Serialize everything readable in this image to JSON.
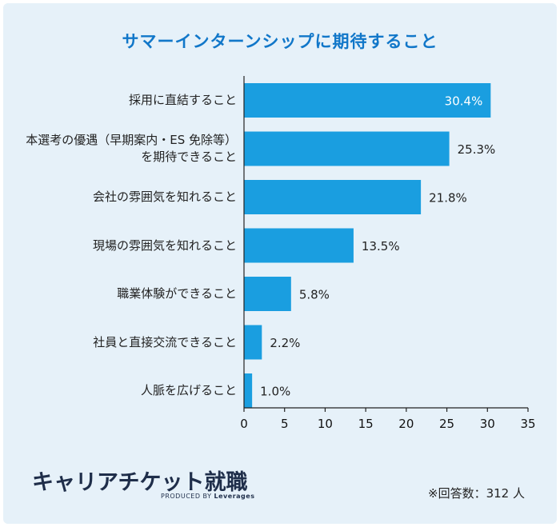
{
  "chart_data": {
    "type": "bar",
    "orientation": "horizontal",
    "title": "サマーインターンシップに期待すること",
    "categories": [
      [
        "採用に直結すること"
      ],
      [
        "本選考の優遇（早期案内・ES 免除等）",
        "を期待できること"
      ],
      [
        "会社の雰囲気を知れること"
      ],
      [
        "現場の雰囲気を知れること"
      ],
      [
        "職業体験ができること"
      ],
      [
        "社員と直接交流できること"
      ],
      [
        "人脈を広げること"
      ]
    ],
    "values": [
      30.4,
      25.3,
      21.8,
      13.5,
      5.8,
      2.2,
      1.0
    ],
    "value_labels": [
      "30.4%",
      "25.3%",
      "21.8%",
      "13.5%",
      "5.8%",
      "2.2%",
      "1.0%"
    ],
    "xlim": [
      0,
      35
    ],
    "xticks": [
      "0",
      "5",
      "10",
      "15",
      "20",
      "25",
      "30",
      "35"
    ],
    "grid": false,
    "bar_color": "#1a9ee0",
    "title_color": "#1177c9",
    "background": "#e6f1f9"
  },
  "logo": {
    "main": "キャリアチケット就職",
    "sub_prefix": "PRODUCED BY",
    "sub_brand": "Leverages"
  },
  "note": "※回答数：312 人"
}
